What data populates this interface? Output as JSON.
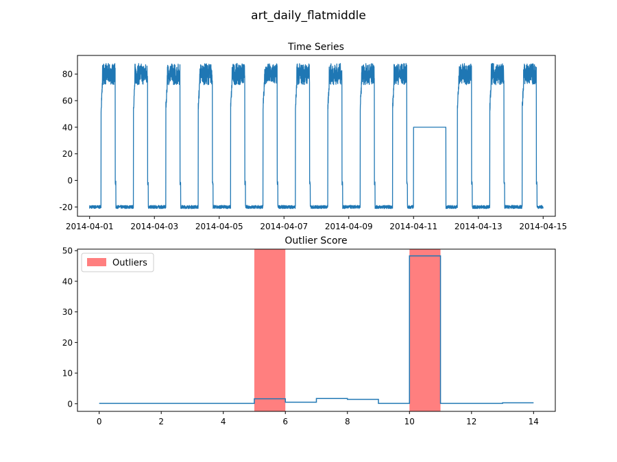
{
  "figure": {
    "title": "art_daily_flatmiddle"
  },
  "chart_data": [
    {
      "type": "line",
      "title": "Time Series",
      "xlabel": "",
      "ylabel": "",
      "x_axis_type": "date",
      "xlim": [
        "2014-03-31T15:00",
        "2014-04-15T09:00"
      ],
      "ylim": [
        -27,
        94
      ],
      "xticks": [
        "2014-04-01",
        "2014-04-03",
        "2014-04-05",
        "2014-04-07",
        "2014-04-09",
        "2014-04-11",
        "2014-04-13",
        "2014-04-15"
      ],
      "yticks": [
        -20,
        0,
        20,
        40,
        60,
        80
      ],
      "grid": false,
      "series": [
        {
          "color": "#1f77b4",
          "pattern": {
            "start": "2014-04-01T00:00",
            "end": "2014-04-15T00:00",
            "daily_low": -20,
            "daily_high_band": [
              72,
              88
            ],
            "rise_hour": 8.5,
            "fall_hour": 19,
            "flat_segment": {
              "start": "2014-04-11T00:00",
              "end": "2014-04-12T00:00",
              "value": 40
            }
          }
        }
      ]
    },
    {
      "type": "line",
      "title": "Outlier Score",
      "xlabel": "",
      "ylabel": "",
      "xlim": [
        -0.7,
        14.7
      ],
      "ylim": [
        -2.5,
        50.5
      ],
      "xticks": [
        0,
        2,
        4,
        6,
        8,
        10,
        12,
        14
      ],
      "yticks": [
        0,
        10,
        20,
        30,
        40,
        50
      ],
      "grid": false,
      "legend": {
        "placement": "top-left",
        "entries": [
          "Outliers"
        ]
      },
      "series": [
        {
          "color": "#1f77b4",
          "step_values": [
            {
              "x0": 0,
              "x1": 1,
              "y": 0.1
            },
            {
              "x0": 1,
              "x1": 2,
              "y": 0.1
            },
            {
              "x0": 2,
              "x1": 3,
              "y": 0.1
            },
            {
              "x0": 3,
              "x1": 4,
              "y": 0.1
            },
            {
              "x0": 4,
              "x1": 5,
              "y": 0.1
            },
            {
              "x0": 5,
              "x1": 6,
              "y": 1.6
            },
            {
              "x0": 6,
              "x1": 7,
              "y": 0.5
            },
            {
              "x0": 7,
              "x1": 8,
              "y": 1.7
            },
            {
              "x0": 8,
              "x1": 9,
              "y": 1.4
            },
            {
              "x0": 9,
              "x1": 10,
              "y": 0.1
            },
            {
              "x0": 10,
              "x1": 11,
              "y": 48.3
            },
            {
              "x0": 11,
              "x1": 12,
              "y": 0.1
            },
            {
              "x0": 12,
              "x1": 13,
              "y": 0.1
            },
            {
              "x0": 13,
              "x1": 14,
              "y": 0.3
            }
          ]
        }
      ],
      "outlier_regions": [
        {
          "x0": 5,
          "x1": 6
        },
        {
          "x0": 10,
          "x1": 11
        }
      ],
      "outlier_color": "#ff7f7f"
    }
  ]
}
